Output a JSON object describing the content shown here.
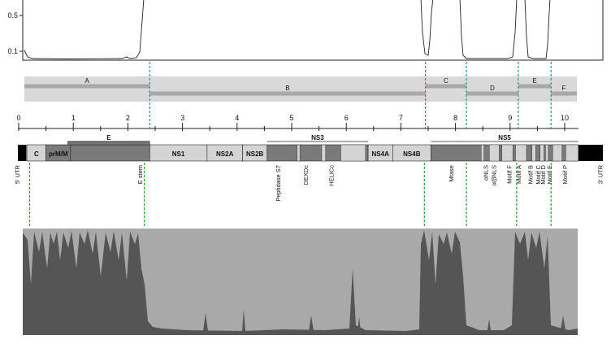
{
  "colors": {
    "outline": "#222222",
    "band_bg": "#d9d9d9",
    "band_stripe": "#a8a8a8",
    "genome_light": "#d4d4d4",
    "genome_mid": "#7a7a7a",
    "genome_dark": "#555555",
    "utr_black": "#000000",
    "teal_dash": "#2f8f95",
    "green_dash": "#2e9a3a",
    "area_light": "#a9a9a9",
    "area_dark": "#555555"
  },
  "similarity_plot": {
    "y_ticks": [
      "0.5",
      "0.1"
    ]
  },
  "regions": [
    {
      "label": "A",
      "start": 0.05,
      "end": 2.4
    },
    {
      "label": "B",
      "start": 2.4,
      "end": 7.45
    },
    {
      "label": "C",
      "start": 7.45,
      "end": 8.2
    },
    {
      "label": "D",
      "start": 8.2,
      "end": 9.15
    },
    {
      "label": "E",
      "start": 9.15,
      "end": 9.75
    },
    {
      "label": "F",
      "start": 9.75,
      "end": 10.25
    }
  ],
  "scale": {
    "ticks": [
      "0",
      "1",
      "2",
      "3",
      "4",
      "5",
      "6",
      "7",
      "8",
      "9",
      "10"
    ]
  },
  "genome": {
    "groups": [
      {
        "label": "E",
        "start": 0.9,
        "end": 2.4
      },
      {
        "label": "NS3",
        "start": 4.55,
        "end": 6.4
      },
      {
        "label": "NS5",
        "start": 7.55,
        "end": 10.25
      }
    ],
    "segments": [
      {
        "label": "C",
        "start": 0.15,
        "end": 0.5,
        "shade": "light"
      },
      {
        "label": "prM/M",
        "start": 0.5,
        "end": 0.95,
        "shade": "mid"
      },
      {
        "label": "",
        "start": 0.95,
        "end": 2.4,
        "shade": "mid"
      },
      {
        "label": "NS1",
        "start": 2.4,
        "end": 3.45,
        "shade": "light"
      },
      {
        "label": "NS2A",
        "start": 3.45,
        "end": 4.1,
        "shade": "light"
      },
      {
        "label": "NS2B",
        "start": 4.1,
        "end": 4.55,
        "shade": "light"
      },
      {
        "label": "",
        "start": 4.55,
        "end": 6.4,
        "shade": "mid"
      },
      {
        "label": "NS4A",
        "start": 6.4,
        "end": 6.85,
        "shade": "light"
      },
      {
        "label": "NS4B",
        "start": 6.85,
        "end": 7.55,
        "shade": "light"
      },
      {
        "label": "",
        "start": 7.55,
        "end": 10.25,
        "shade": "mid"
      }
    ],
    "features": [
      {
        "label": "5' UTR",
        "pos": -0.03
      },
      {
        "label": "E stem",
        "pos": 2.22
      },
      {
        "label": "Peptidase S7",
        "pos": 4.75
      },
      {
        "label": "DEXDc",
        "pos": 5.25
      },
      {
        "label": "HELICc",
        "pos": 5.72
      },
      {
        "label": "Mtase",
        "pos": 7.92
      },
      {
        "label": "αNLS",
        "pos": 8.55
      },
      {
        "label": "α/βNLS",
        "pos": 8.7
      },
      {
        "label": "Motif F",
        "pos": 8.98
      },
      {
        "label": "Motif A",
        "pos": 9.15
      },
      {
        "label": "Motif B",
        "pos": 9.37
      },
      {
        "label": "Motif C",
        "pos": 9.51
      },
      {
        "label": "Motif D",
        "pos": 9.6
      },
      {
        "label": "Motif E",
        "pos": 9.72
      },
      {
        "label": "Motif P",
        "pos": 10.0
      },
      {
        "label": "3' UTR",
        "pos": 10.65
      }
    ]
  },
  "boundaries": {
    "teal": [
      2.4,
      7.45,
      8.2,
      9.15,
      9.75
    ],
    "green": [
      0.2,
      2.3,
      7.43,
      8.2,
      9.12,
      9.75
    ]
  }
}
